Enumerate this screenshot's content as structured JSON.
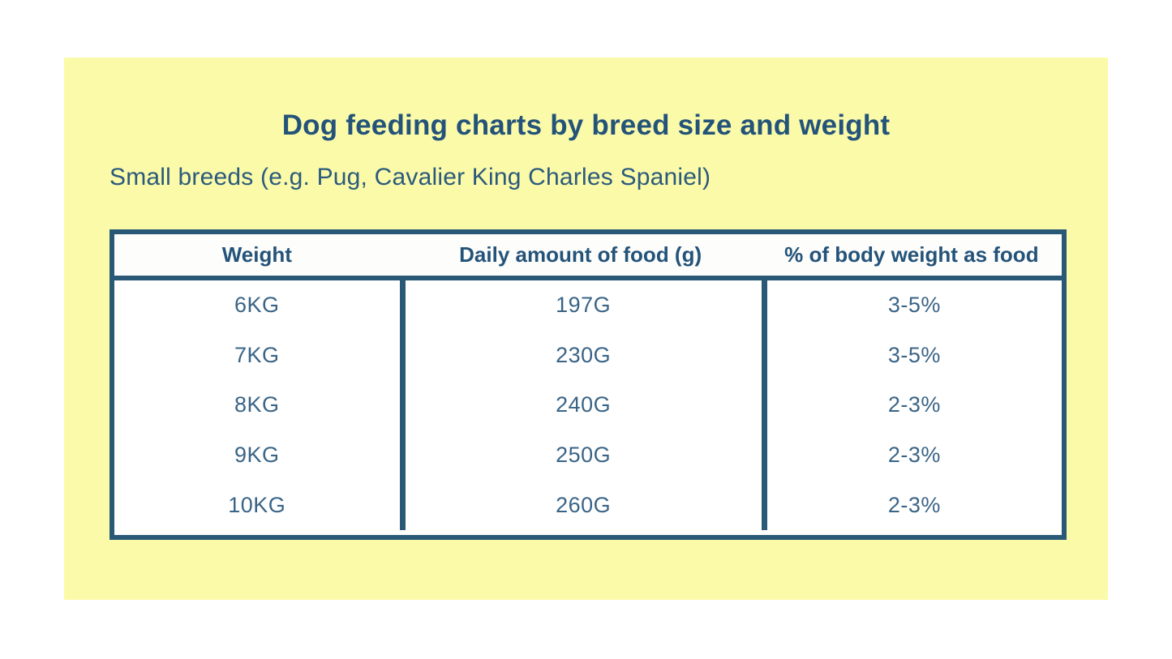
{
  "theme": {
    "panel_background": "#FAFAA9",
    "border_color": "#2A5977",
    "heading_text_color": "#24537A",
    "body_text_color": "#3A6486",
    "cell_background": "#FFFFFF"
  },
  "header": {
    "title": "Dog feeding charts by breed size and weight",
    "subtitle": "Small breeds (e.g. Pug, Cavalier King Charles Spaniel)"
  },
  "table": {
    "columns": [
      "Weight",
      "Daily amount of food (g)",
      "% of body weight as food"
    ],
    "rows": [
      {
        "weight": "6KG",
        "daily_food": "197G",
        "body_weight_pct": "3-5%"
      },
      {
        "weight": "7KG",
        "daily_food": "230G",
        "body_weight_pct": "3-5%"
      },
      {
        "weight": "8KG",
        "daily_food": "240G",
        "body_weight_pct": "2-3%"
      },
      {
        "weight": "9KG",
        "daily_food": "250G",
        "body_weight_pct": "2-3%"
      },
      {
        "weight": "10KG",
        "daily_food": "260G",
        "body_weight_pct": "2-3%"
      }
    ]
  },
  "chart_data": {
    "type": "table",
    "title": "Dog feeding charts by breed size and weight",
    "subtitle": "Small breeds (e.g. Pug, Cavalier King Charles Spaniel)",
    "columns": [
      "Weight",
      "Daily amount of food (g)",
      "% of body weight as food"
    ],
    "rows": [
      [
        "6KG",
        "197G",
        "3-5%"
      ],
      [
        "7KG",
        "230G",
        "3-5%"
      ],
      [
        "8KG",
        "240G",
        "2-3%"
      ],
      [
        "9KG",
        "250G",
        "2-3%"
      ],
      [
        "10KG",
        "260G",
        "2-3%"
      ]
    ]
  }
}
